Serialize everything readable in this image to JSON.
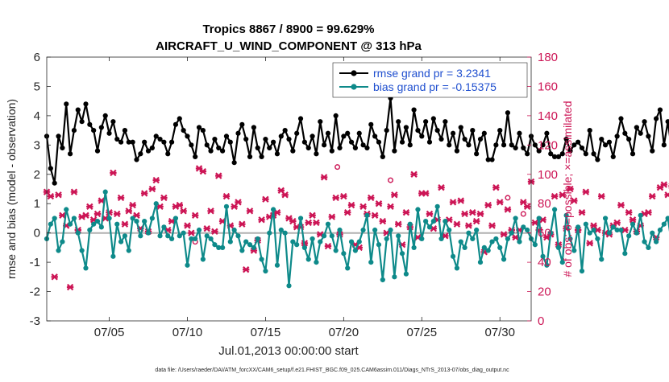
{
  "chart_data": {
    "type": "line",
    "title": "Tropics 8867 / 8900 = 99.629%",
    "subtitle": "AIRCRAFT_U_WIND_COMPONENT @ 313 hPa",
    "xlabel": "Jul.01,2013 00:00:00 start",
    "ylabel": "rmse and bias (model - observation)",
    "ylabel_right": "# of obs: o=possible; ×=assimilated",
    "footnote": "data file: /Users/raeder/DAI/ATM_forcXX/CAM6_setup/f.e21.FHIST_BGC.f09_025.CAM6assim.011/Diags_NTrS_2013-07/obs_diag_output.nc",
    "xlim": [
      1,
      32
    ],
    "ylim": [
      -3,
      6
    ],
    "ylim_right": [
      0,
      180
    ],
    "x_tick_values": [
      5,
      10,
      15,
      20,
      25,
      30
    ],
    "x_tick_labels": [
      "07/05",
      "07/10",
      "07/15",
      "07/20",
      "07/25",
      "07/30"
    ],
    "y_ticks": [
      -3,
      -2,
      -1,
      0,
      1,
      2,
      3,
      4,
      5,
      6
    ],
    "y_ticks_right": [
      0,
      20,
      40,
      60,
      80,
      100,
      120,
      140,
      160,
      180
    ],
    "time_step": 0.25,
    "legend_position": "top-right",
    "series": [
      {
        "name": "rmse grand pr = 3.2341",
        "color": "#000000",
        "values": [
          3.3,
          2.2,
          1.7,
          3.3,
          2.9,
          4.4,
          2.7,
          3.5,
          4.2,
          3.8,
          4.4,
          3.7,
          3.5,
          2.8,
          3.6,
          4.0,
          3.4,
          3.8,
          3.2,
          3.1,
          3.5,
          3.1,
          3.1,
          2.5,
          2.7,
          3.1,
          2.8,
          2.9,
          3.3,
          3.2,
          3.1,
          2.7,
          3.1,
          3.7,
          3.9,
          3.5,
          3.3,
          3.0,
          2.6,
          3.6,
          3.5,
          3.0,
          2.8,
          3.2,
          2.9,
          2.8,
          3.3,
          3.1,
          2.4,
          3.4,
          3.7,
          3.2,
          2.6,
          3.6,
          2.9,
          2.6,
          3.2,
          2.9,
          3.1,
          2.7,
          3.3,
          3.5,
          3.2,
          2.8,
          3.4,
          3.9,
          3.1,
          2.9,
          3.3,
          2.7,
          3.8,
          3.0,
          3.4,
          2.8,
          4.0,
          2.9,
          3.3,
          3.4,
          3.1,
          2.9,
          3.4,
          3.0,
          2.9,
          3.7,
          3.3,
          3.1,
          2.6,
          3.5,
          4.6,
          2.8,
          3.8,
          3.1,
          3.6,
          3.0,
          4.2,
          3.5,
          3.3,
          3.8,
          3.1,
          3.9,
          3.5,
          3.2,
          3.8,
          3.0,
          3.4,
          2.8,
          3.6,
          3.2,
          3.0,
          3.5,
          2.7,
          3.2,
          3.4,
          2.5,
          2.5,
          3.0,
          3.5,
          3.0,
          4.1,
          3.0,
          2.9,
          3.4,
          2.9,
          2.7,
          3.3,
          3.0,
          2.8,
          3.0,
          3.4,
          2.7,
          2.6,
          2.6,
          2.7,
          3.2,
          2.8,
          3.0,
          3.1,
          2.9,
          2.7,
          3.5,
          2.7,
          2.5,
          3.2,
          3.0,
          3.1,
          2.6,
          3.3,
          3.9,
          3.4,
          3.2,
          2.7,
          3.6,
          3.4,
          3.8,
          3.3,
          2.8,
          3.9,
          4.2,
          3.0,
          3.8,
          2.8,
          3.7,
          4.0,
          3.0,
          3.2,
          2.9,
          3.8,
          2.8,
          3.6,
          3.1,
          2.6,
          3.5,
          3.2,
          3.1,
          2.9,
          3.0,
          2.8,
          3.3,
          3.2,
          2.9,
          3.5,
          3.0,
          3.0,
          2.5,
          3.1,
          2.7,
          3.0,
          2.8,
          3.2,
          2.6,
          3.4,
          4.7,
          3.0,
          2.6,
          3.3,
          2.9,
          4.5,
          3.0,
          3.3,
          2.6,
          3.8,
          3.4,
          4.5,
          3.3,
          2.6,
          3.1,
          2.8,
          3.5,
          3.2,
          3.6,
          2.6,
          3.2,
          2.6,
          3.8,
          3.4,
          2.8,
          3.9,
          3.6,
          3.3,
          2.8,
          2.9,
          2.5,
          3.6,
          3.0,
          4.1,
          3.1,
          2.6,
          3.5,
          3.3,
          2.7,
          2.7,
          2.9,
          2.8,
          2.9,
          3.0,
          2.7,
          3.1,
          3.0,
          2.4,
          2.8
        ]
      },
      {
        "name": "bias grand pr = -0.15375",
        "color": "#0e8a8a",
        "values": [
          -0.2,
          0.3,
          0.5,
          -0.6,
          -0.3,
          0.8,
          0.3,
          0.5,
          0.0,
          -0.6,
          -1.2,
          0.1,
          0.3,
          0.4,
          0.2,
          1.4,
          0.5,
          -0.8,
          0.3,
          -0.3,
          -0.1,
          -0.6,
          0.5,
          0.4,
          -0.1,
          0.4,
          0.0,
          0.5,
          1.0,
          -0.1,
          0.2,
          -0.1,
          -0.2,
          0.5,
          -0.1,
          0.0,
          -1.1,
          -0.2,
          -0.2,
          0.1,
          -0.9,
          -0.1,
          -0.2,
          -0.4,
          -0.5,
          -0.5,
          0.9,
          -0.3,
          0.1,
          -0.1,
          -0.6,
          -0.3,
          -0.4,
          -0.5,
          -0.2,
          -0.9,
          -1.3,
          0.0,
          0.8,
          -1.1,
          0.1,
          0.0,
          -1.8,
          -0.3,
          -0.4,
          0.5,
          -0.5,
          -0.9,
          -0.2,
          -1.0,
          -0.3,
          -0.1,
          0.3,
          -0.1,
          -0.6,
          0.1,
          -0.7,
          -1.2,
          -0.3,
          -0.6,
          -0.3,
          0.1,
          0.6,
          -1.0,
          0.1,
          -0.4,
          -1.6,
          -0.2,
          0.1,
          -1.5,
          -0.1,
          -0.7,
          -1.4,
          0.3,
          -0.5,
          0.8,
          -0.2,
          0.4,
          0.2,
          0.4,
          0.9,
          -0.2,
          0.4,
          0.1,
          -0.8,
          -1.2,
          -0.3,
          -0.5,
          0.0,
          -0.2,
          0.1,
          -1.0,
          -0.5,
          -0.6,
          -0.3,
          -0.2,
          -0.5,
          -0.9,
          -0.2,
          0.0,
          0.5,
          -0.3,
          0.2,
          0.1,
          -0.2,
          -0.4,
          0.5,
          -0.8,
          -1.1,
          0.0,
          0.8,
          -0.5,
          -1.0,
          0.6,
          -0.2,
          -0.6,
          0.2,
          -1.3,
          0.3,
          0.0,
          0.1,
          -0.2,
          -0.9,
          0.5,
          0.0,
          0.2,
          0.1,
          0.1,
          -0.7,
          -0.1,
          0.3,
          0.0,
          0.6,
          -0.3,
          -0.5,
          0.0,
          -0.3,
          0.1,
          0.3,
          0.5,
          -0.4,
          -0.1,
          -0.7,
          0.9,
          -1.3,
          0.0,
          0.6,
          0.2,
          -0.6,
          0.4,
          -0.2,
          0.0,
          0.6,
          -1.4,
          -0.5,
          -0.3,
          -0.1,
          0.6,
          0.2,
          -0.4,
          0.5,
          -0.7,
          -0.2,
          -0.4,
          -0.3,
          0.4,
          -0.6,
          0.1,
          -1.2,
          0.3,
          -1.4,
          -0.1,
          0.5,
          -0.1,
          0.6,
          -0.4,
          0.6,
          0.4,
          0.0,
          -0.2,
          0.3,
          -0.1,
          0.9,
          0.3,
          -0.2,
          0.5,
          -0.3,
          -0.6,
          0.6,
          1.4,
          0.3,
          -0.5,
          0.1,
          -0.6,
          0.4,
          -0.1,
          -0.3,
          -0.9,
          -0.2,
          0.0,
          -0.4,
          0.1,
          0.2,
          0.4,
          -0.3,
          -0.6,
          0.5,
          -0.4,
          -0.5,
          -0.1,
          -0.1,
          -0.2,
          0.2,
          0.7,
          1.1,
          0.2,
          -0.5,
          0.9,
          0.0,
          -0.1,
          0.2,
          0.6,
          0.3,
          0.0,
          -0.1,
          0.4,
          0.7,
          1.0,
          -1.1
        ]
      },
      {
        "name": "# of obs assimilated",
        "axis": "right",
        "marker": "x",
        "color": "#cc1555",
        "values": [
          88,
          85,
          30,
          86,
          72,
          65,
          23,
          88,
          62,
          71,
          72,
          78,
          69,
          73,
          82,
          70,
          74,
          101,
          73,
          84,
          66,
          75,
          79,
          72,
          63,
          87,
          61,
          90,
          96,
          78,
          84,
          62,
          68,
          78,
          79,
          75,
          65,
          60,
          72,
          104,
          102,
          63,
          75,
          61,
          99,
          68,
          85,
          65,
          78,
          81,
          66,
          35,
          75,
          48,
          55,
          69,
          83,
          71,
          72,
          74,
          89,
          86,
          70,
          68,
          64,
          64,
          53,
          67,
          72,
          67,
          59,
          98,
          51,
          71,
          84,
          59,
          85,
          74,
          79,
          52,
          50,
          78,
          73,
          84,
          72,
          80,
          68,
          60,
          78,
          86,
          66,
          52,
          74,
          64,
          100,
          57,
          87,
          87,
          73,
          63,
          69,
          91,
          58,
          69,
          81,
          66,
          82,
          73,
          65,
          74,
          68,
          73,
          47,
          79,
          65,
          91,
          81,
          59,
          76,
          62,
          57,
          62,
          81,
          78,
          95,
          67,
          62,
          69,
          57,
          59,
          85,
          52,
          86,
          63,
          90,
          82,
          62,
          74,
          88,
          53,
          65,
          62,
          85,
          60,
          59,
          65,
          67,
          79,
          62,
          74,
          69,
          61,
          65,
          73,
          74,
          85,
          57,
          91,
          93,
          86,
          92,
          94,
          93,
          91,
          93,
          92,
          89,
          83,
          90,
          81,
          67,
          74,
          54,
          85,
          82,
          88,
          77,
          60,
          60,
          89,
          74,
          87,
          63,
          70,
          65,
          86,
          79,
          84,
          76,
          66,
          86,
          78,
          76,
          90,
          84,
          82,
          82,
          80,
          65,
          87,
          61,
          79,
          102,
          98,
          79,
          89,
          84,
          58,
          60,
          72,
          87,
          52,
          63,
          59,
          55,
          74,
          60,
          83,
          70,
          63,
          56,
          79,
          59,
          78,
          61,
          75,
          73,
          84,
          60,
          62,
          55,
          77,
          82,
          78,
          70,
          61,
          99,
          63,
          64,
          80,
          88,
          61,
          95,
          75,
          63,
          64,
          70,
          87,
          78,
          0
        ]
      }
    ],
    "possible_marks": [
      {
        "x": 10.5,
        "y": 54
      },
      {
        "x": 19.6,
        "y": 105
      },
      {
        "x": 23.0,
        "y": 96
      },
      {
        "x": 30.5,
        "y": 84
      },
      {
        "x": 31.5,
        "y": 73
      }
    ]
  }
}
